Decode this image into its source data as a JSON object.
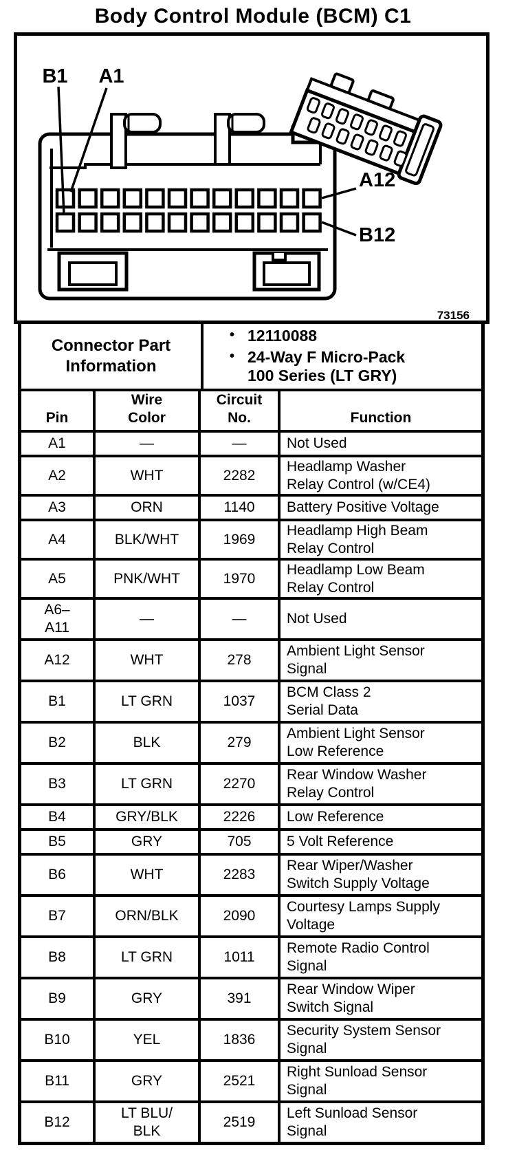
{
  "title": "Body Control Module (BCM) C1",
  "colors": {
    "ink": "#000000",
    "paper": "#ffffff"
  },
  "diagram": {
    "figure_number": "73156",
    "labels": {
      "b1": "B1",
      "a1": "A1",
      "a12": "A12",
      "b12": "B12"
    },
    "pin_rows": 2,
    "pins_per_row": 12
  },
  "part_info": {
    "header": "Connector Part\nInformation",
    "bullet_char": "•",
    "bullets": [
      "12110088",
      "24-Way F Micro-Pack\n100 Series (LT GRY)"
    ]
  },
  "table": {
    "columns": [
      "Pin",
      "Wire\nColor",
      "Circuit\nNo.",
      "Function"
    ],
    "rows": [
      {
        "pin": "A1",
        "wire": "—",
        "circuit": "—",
        "func": "Not Used"
      },
      {
        "pin": "A2",
        "wire": "WHT",
        "circuit": "2282",
        "func": "Headlamp Washer\nRelay Control (w/CE4)"
      },
      {
        "pin": "A3",
        "wire": "ORN",
        "circuit": "1140",
        "func": "Battery Positive Voltage"
      },
      {
        "pin": "A4",
        "wire": "BLK/WHT",
        "circuit": "1969",
        "func": "Headlamp High Beam\nRelay Control"
      },
      {
        "pin": "A5",
        "wire": "PNK/WHT",
        "circuit": "1970",
        "func": "Headlamp Low Beam\nRelay Control"
      },
      {
        "pin": "A6–\nA11",
        "wire": "—",
        "circuit": "—",
        "func": "Not Used"
      },
      {
        "pin": "A12",
        "wire": "WHT",
        "circuit": "278",
        "func": "Ambient Light Sensor\nSignal"
      },
      {
        "pin": "B1",
        "wire": "LT GRN",
        "circuit": "1037",
        "func": "BCM Class 2\nSerial Data"
      },
      {
        "pin": "B2",
        "wire": "BLK",
        "circuit": "279",
        "func": "Ambient Light Sensor\nLow Reference"
      },
      {
        "pin": "B3",
        "wire": "LT GRN",
        "circuit": "2270",
        "func": "Rear Window Washer\nRelay Control"
      },
      {
        "pin": "B4",
        "wire": "GRY/BLK",
        "circuit": "2226",
        "func": "Low Reference"
      },
      {
        "pin": "B5",
        "wire": "GRY",
        "circuit": "705",
        "func": "5 Volt Reference"
      },
      {
        "pin": "B6",
        "wire": "WHT",
        "circuit": "2283",
        "func": "Rear Wiper/Washer\nSwitch Supply Voltage"
      },
      {
        "pin": "B7",
        "wire": "ORN/BLK",
        "circuit": "2090",
        "func": "Courtesy Lamps Supply\nVoltage"
      },
      {
        "pin": "B8",
        "wire": "LT GRN",
        "circuit": "1011",
        "func": "Remote Radio Control\nSignal"
      },
      {
        "pin": "B9",
        "wire": "GRY",
        "circuit": "391",
        "func": "Rear Window Wiper\nSwitch Signal"
      },
      {
        "pin": "B10",
        "wire": "YEL",
        "circuit": "1836",
        "func": "Security System Sensor\nSignal"
      },
      {
        "pin": "B11",
        "wire": "GRY",
        "circuit": "2521",
        "func": "Right Sunload Sensor\nSignal"
      },
      {
        "pin": "B12",
        "wire": "LT BLU/\nBLK",
        "circuit": "2519",
        "func": "Left Sunload Sensor\nSignal"
      }
    ]
  }
}
